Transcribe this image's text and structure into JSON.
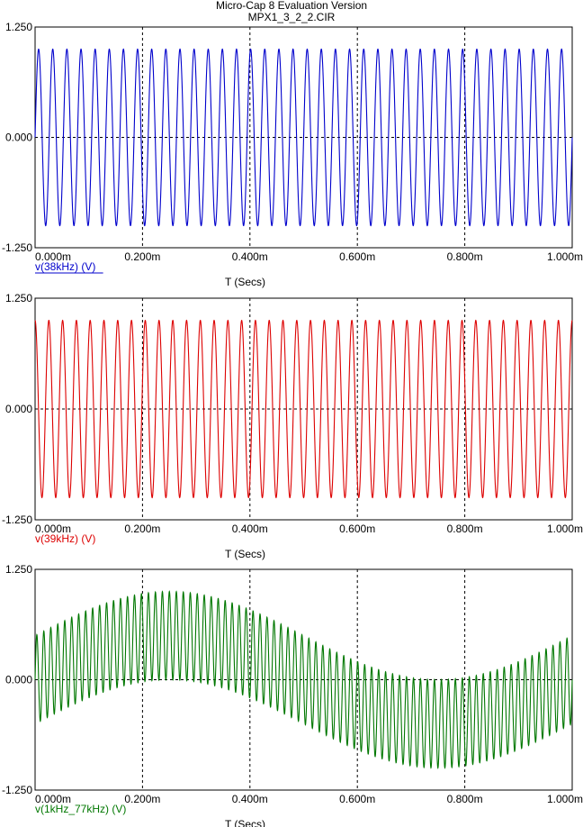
{
  "window": {
    "title": "Micro-Cap 8 Evaluation Version",
    "subtitle": "MPX1_3_2_2.CIR"
  },
  "colors": {
    "series_1": "#0000cc",
    "series_2": "#dd0000",
    "series_3": "#007700",
    "frame": "#000000",
    "grid": "#000000"
  },
  "chart_data": [
    {
      "type": "line",
      "series": [
        {
          "name": "v(38kHz) (V)",
          "function": "sin",
          "amplitude": 1.0,
          "frequency_hz": 38000,
          "color": "#0000cc"
        }
      ],
      "xlabel": "T (Secs)",
      "x_tick_labels": [
        "0.000m",
        "0.200m",
        "0.400m",
        "0.600m",
        "0.800m",
        "1.000m"
      ],
      "y_tick_labels": [
        "1.250",
        "0.000",
        "-1.250"
      ],
      "xlim": [
        0,
        0.001
      ],
      "ylim": [
        -1.25,
        1.25
      ],
      "x_ticks": [
        0,
        0.0002,
        0.0004,
        0.0006,
        0.0008,
        0.001
      ],
      "y_ticks": [
        1.25,
        0,
        -1.25
      ],
      "grid": "dashed"
    },
    {
      "type": "line",
      "series": [
        {
          "name": "v(39kHz) (V)",
          "function": "cos",
          "amplitude": 1.0,
          "frequency_hz": 39000,
          "color": "#dd0000"
        }
      ],
      "xlabel": "T (Secs)",
      "x_tick_labels": [
        "0.000m",
        "0.200m",
        "0.400m",
        "0.600m",
        "0.800m",
        "1.000m"
      ],
      "y_tick_labels": [
        "1.250",
        "0.000",
        "-1.250"
      ],
      "xlim": [
        0,
        0.001
      ],
      "ylim": [
        -1.25,
        1.25
      ],
      "x_ticks": [
        0,
        0.0002,
        0.0004,
        0.0006,
        0.0008,
        0.001
      ],
      "y_ticks": [
        1.25,
        0,
        -1.25
      ],
      "grid": "dashed"
    },
    {
      "type": "line",
      "series": [
        {
          "name": "v(1kHz_77kHz) (V)",
          "function": "sin(1kHz)*0.5 + sin(77kHz)*0.5",
          "components": [
            {
              "amplitude": 0.5,
              "frequency_hz": 1000
            },
            {
              "amplitude": 0.5,
              "frequency_hz": 77000
            }
          ],
          "color": "#007700"
        }
      ],
      "xlabel": "T (Secs)",
      "x_tick_labels": [
        "0.000m",
        "0.200m",
        "0.400m",
        "0.600m",
        "0.800m",
        "1.000m"
      ],
      "y_tick_labels": [
        "1.250",
        "0.000",
        "-1.250"
      ],
      "xlim": [
        0,
        0.001
      ],
      "ylim": [
        -1.25,
        1.25
      ],
      "x_ticks": [
        0,
        0.0002,
        0.0004,
        0.0006,
        0.0008,
        0.001
      ],
      "y_ticks": [
        1.25,
        0,
        -1.25
      ],
      "grid": "dashed"
    }
  ]
}
